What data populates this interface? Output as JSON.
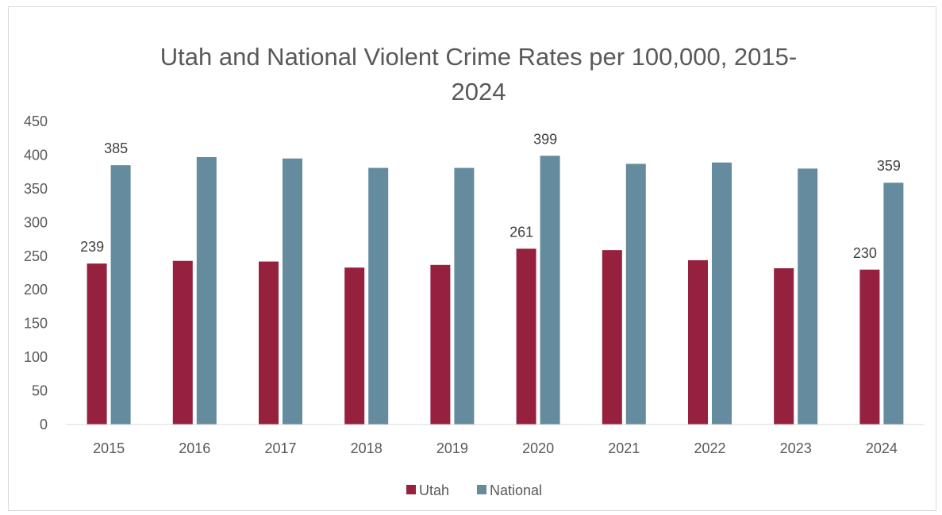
{
  "chart_data": {
    "type": "bar",
    "title_lines": [
      "Utah and National Violent Crime Rates per 100,000, 2015-",
      "2024"
    ],
    "categories": [
      "2015",
      "2016",
      "2017",
      "2018",
      "2019",
      "2020",
      "2021",
      "2022",
      "2023",
      "2024"
    ],
    "series": [
      {
        "name": "Utah",
        "color": "#96213f",
        "values": [
          239,
          243,
          242,
          233,
          237,
          261,
          259,
          244,
          232,
          230
        ],
        "data_labels": [
          "239",
          "",
          "",
          "",
          "",
          "261",
          "",
          "",
          "",
          "230"
        ]
      },
      {
        "name": "National",
        "color": "#658b9e",
        "values": [
          385,
          397,
          395,
          381,
          381,
          399,
          387,
          389,
          380,
          359
        ],
        "data_labels": [
          "385",
          "",
          "",
          "",
          "",
          "399",
          "",
          "",
          "",
          "359"
        ]
      }
    ],
    "yticks": [
      "0",
      "50",
      "100",
      "150",
      "200",
      "250",
      "300",
      "350",
      "400",
      "450"
    ],
    "ylim": [
      0,
      450
    ],
    "grid": false,
    "legend_position": "bottom"
  }
}
